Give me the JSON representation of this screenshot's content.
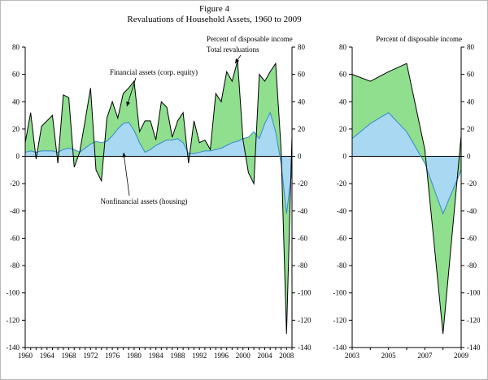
{
  "figure": {
    "title": "Figure 4",
    "subtitle": "Revaluations of Household Assets, 1960 to 2009"
  },
  "annotations": {
    "percent_left": "Percent of disposable income",
    "total": "Total revaluations",
    "financial": "Financial assets (corp. equity)",
    "housing": "Nonfinancial assets (housing)",
    "percent_right": "Percent of disposable income"
  },
  "colors": {
    "financial_fill": "#8fdf8f",
    "housing_fill": "#a9d8f3",
    "housing_line": "#3d8fc9",
    "total_line": "#000000",
    "financial_label": "#2db82d",
    "housing_label": "#4ab4e6"
  },
  "chart_data": {
    "type": "area",
    "stacked": true,
    "title": "Figure 4. Revaluations of Household Assets, 1960 to 2009",
    "ylabel": "Percent of disposable income",
    "ylim": [
      -140,
      80
    ],
    "ytick_step": 20,
    "grid": false,
    "panels": [
      {
        "name": "full-period",
        "x_range": [
          1960,
          2009
        ],
        "x_tick_labels": [
          "1960",
          "1964",
          "1968",
          "1972",
          "1976",
          "1980",
          "1984",
          "1988",
          "1992",
          "1996",
          "2000",
          "2004",
          "2008"
        ]
      },
      {
        "name": "recent-detail",
        "x_range": [
          2003,
          2009
        ],
        "x_tick_labels": [
          "2003",
          "2005",
          "2007",
          "2009"
        ]
      }
    ],
    "x": [
      1960,
      1961,
      1962,
      1963,
      1964,
      1965,
      1966,
      1967,
      1968,
      1969,
      1970,
      1971,
      1972,
      1973,
      1974,
      1975,
      1976,
      1977,
      1978,
      1979,
      1980,
      1981,
      1982,
      1983,
      1984,
      1985,
      1986,
      1987,
      1988,
      1989,
      1990,
      1991,
      1992,
      1993,
      1994,
      1995,
      1996,
      1997,
      1998,
      1999,
      2000,
      2001,
      2002,
      2003,
      2004,
      2005,
      2006,
      2007,
      2008,
      2009
    ],
    "series": [
      {
        "name": "Nonfinancial assets (housing)",
        "role": "stacked-base",
        "values": [
          3,
          4,
          3,
          4,
          4,
          4,
          3,
          5,
          6,
          5,
          3,
          6,
          9,
          11,
          10,
          11,
          15,
          20,
          24,
          25,
          19,
          10,
          3,
          5,
          8,
          10,
          12,
          12,
          13,
          10,
          2,
          2,
          3,
          4,
          4,
          5,
          6,
          8,
          10,
          11,
          13,
          14,
          18,
          13,
          24,
          32,
          18,
          -5,
          -42,
          -10
        ]
      },
      {
        "name": "Financial assets (corp. equity)",
        "role": "stacked-top",
        "values": [
          7,
          28,
          -5,
          18,
          22,
          26,
          -8,
          40,
          37,
          -13,
          0,
          20,
          41,
          -21,
          -28,
          17,
          25,
          8,
          22,
          25,
          36,
          8,
          23,
          21,
          4,
          30,
          24,
          2,
          13,
          22,
          -7,
          24,
          7,
          8,
          1,
          41,
          34,
          54,
          45,
          59,
          -1,
          -26,
          -38,
          47,
          31,
          30,
          50,
          10,
          -88,
          25
        ]
      },
      {
        "name": "Total revaluations",
        "role": "line",
        "values": [
          10,
          32,
          -2,
          22,
          26,
          30,
          -5,
          45,
          43,
          -8,
          3,
          26,
          50,
          -10,
          -18,
          28,
          40,
          28,
          46,
          50,
          55,
          18,
          26,
          26,
          12,
          40,
          36,
          14,
          26,
          32,
          -5,
          26,
          10,
          12,
          5,
          46,
          40,
          62,
          55,
          70,
          12,
          -12,
          -20,
          60,
          55,
          62,
          68,
          5,
          -130,
          15
        ]
      }
    ]
  }
}
